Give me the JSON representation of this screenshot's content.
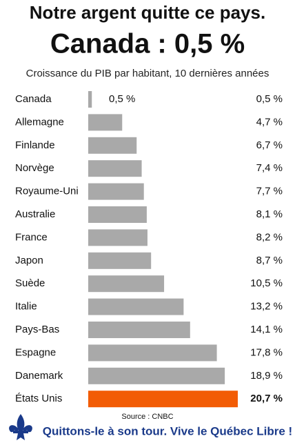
{
  "chart_data": {
    "type": "bar",
    "orientation": "horizontal",
    "title": "Notre argent quitte ce pays.",
    "subtitle": "Canada : 0,5 %",
    "caption": "Croissance du PIB par habitant, 10 dernières années",
    "source": "Source : CNBC",
    "footer": "Quittons-le à son tour. Vive le Québec Libre !",
    "categories": [
      "Canada",
      "Allemagne",
      "Finlande",
      "Norvège",
      "Royaume-Uni",
      "Australie",
      "France",
      "Japon",
      "Suède",
      "Italie",
      "Pays-Bas",
      "Espagne",
      "Danemark",
      "États Unis"
    ],
    "values": [
      0.5,
      4.7,
      6.7,
      7.4,
      7.7,
      8.1,
      8.2,
      8.7,
      10.5,
      13.2,
      14.1,
      17.8,
      18.9,
      20.7
    ],
    "value_labels": [
      "0,5 %",
      "4,7 %",
      "6,7 %",
      "7,4 %",
      "7,7 %",
      "8,1 %",
      "8,2 %",
      "8,7 %",
      "10,5 %",
      "13,2 %",
      "14,1 %",
      "17,8 %",
      "18,9 %",
      "20,7 %"
    ],
    "colors": [
      "#a9a9a9",
      "#a9a9a9",
      "#a9a9a9",
      "#a9a9a9",
      "#a9a9a9",
      "#a9a9a9",
      "#a9a9a9",
      "#a9a9a9",
      "#a9a9a9",
      "#a9a9a9",
      "#a9a9a9",
      "#a9a9a9",
      "#a9a9a9",
      "#f25c05"
    ]
  }
}
